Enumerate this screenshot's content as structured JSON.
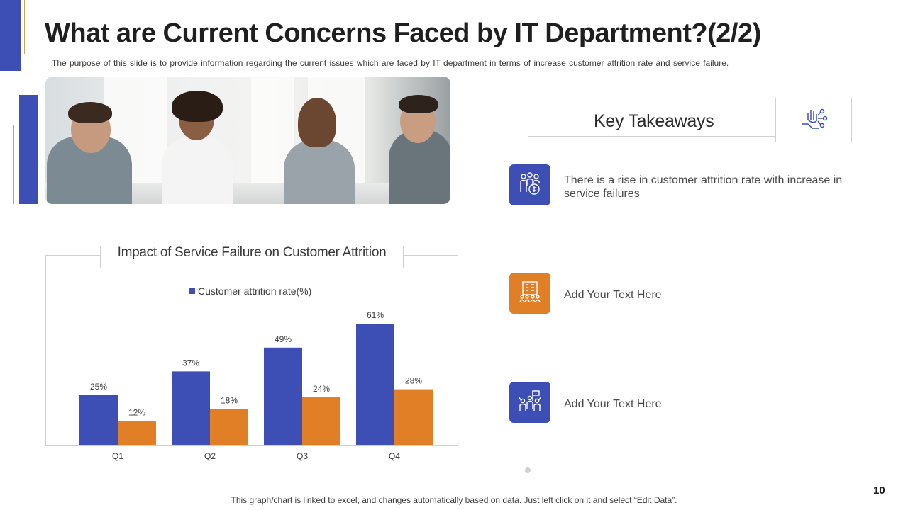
{
  "slide": {
    "title": "What are Current Concerns Faced by IT Department?(2/2)",
    "subtitle": "The purpose of this slide is to provide information regarding the current issues which are faced by IT department in terms of increase customer attrition rate and service failure.",
    "footer_note": "This graph/chart is linked to excel, and changes automatically based on data. Just left click on it and select “Edit Data”.",
    "page_number": "10"
  },
  "colors": {
    "accent_blue": "#3d4fb5",
    "accent_orange": "#e07f26",
    "accent_gold": "#c9a55a"
  },
  "photo": {
    "icon": "team-meeting-photo"
  },
  "chart_data": {
    "type": "bar",
    "title": "Impact of Service Failure on Customer Attrition",
    "categories": [
      "Q1",
      "Q2",
      "Q3",
      "Q4"
    ],
    "series": [
      {
        "name": "Customer attrition rate(%)",
        "values": [
          25,
          37,
          49,
          61
        ],
        "labels": [
          "25%",
          "37%",
          "49%",
          "61%"
        ],
        "color": "#3d4fb5"
      },
      {
        "values": [
          12,
          18,
          24,
          28
        ],
        "labels": [
          "12%",
          "18%",
          "24%",
          "28%"
        ],
        "color": "#e07f26"
      }
    ],
    "ylim": [
      0,
      70
    ],
    "grid": false,
    "legend_position": "top-center"
  },
  "takeaways": {
    "heading": "Key Takeaways",
    "heading_icon": "hand-network-icon",
    "items": [
      {
        "text": "There is a rise in customer attrition rate with increase in service failures",
        "icon": "customer-money-icon",
        "color": "#3d4fb5"
      },
      {
        "text": "Add Your Text Here",
        "icon": "building-people-icon",
        "color": "#e07f26"
      },
      {
        "text": "Add Your Text Here",
        "icon": "team-flag-icon",
        "color": "#3d4fb5"
      }
    ]
  }
}
